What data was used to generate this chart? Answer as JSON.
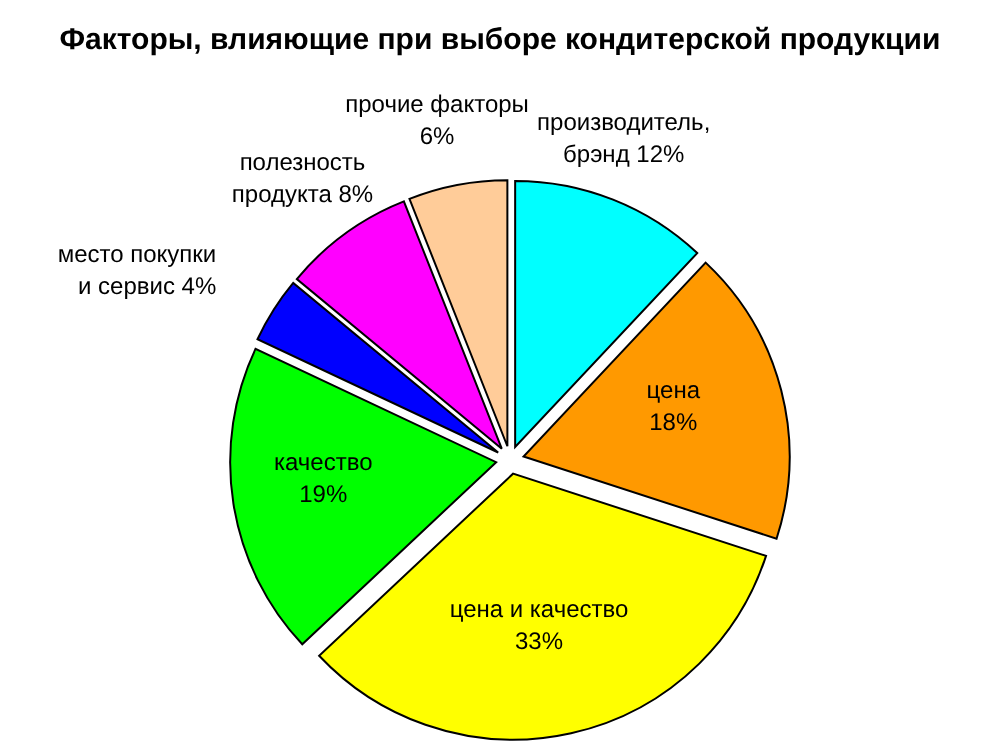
{
  "chart_data": {
    "type": "pie",
    "title": "Факторы, влияющие при выборе кондитерской продукции",
    "categories": [
      "производитель, брэнд",
      "цена",
      "цена и качество",
      "качество",
      "место покупки и сервис",
      "полезность продукта",
      "прочие факторы"
    ],
    "values": [
      12,
      18,
      33,
      19,
      4,
      8,
      6
    ],
    "colors": [
      "#00ffff",
      "#ff9900",
      "#ffff00",
      "#00ff00",
      "#0000ff",
      "#ff00ff",
      "#ffcc99"
    ],
    "value_labels": [
      "12%",
      "18%",
      "33%",
      "19%",
      "4%",
      "8%",
      "6%"
    ]
  }
}
